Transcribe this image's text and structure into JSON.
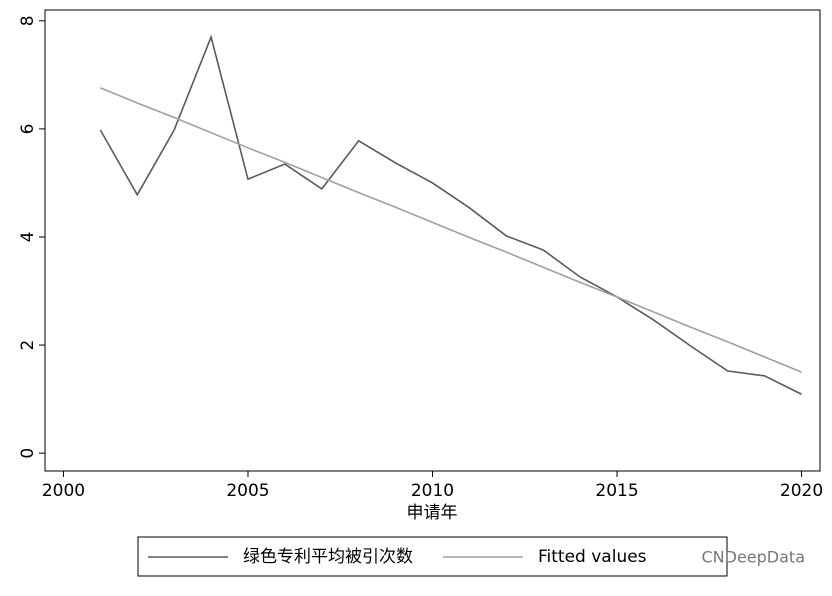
{
  "chart_data": {
    "type": "line",
    "x": [
      2001,
      2002,
      2003,
      2004,
      2005,
      2006,
      2007,
      2008,
      2009,
      2010,
      2011,
      2012,
      2013,
      2014,
      2015,
      2016,
      2017,
      2018,
      2019,
      2020
    ],
    "series": [
      {
        "name": "绿色专利平均被引次数",
        "color": "#5a5a5a",
        "values": [
          5.98,
          4.78,
          5.98,
          7.7,
          5.07,
          5.35,
          4.89,
          5.78,
          5.37,
          5.0,
          4.54,
          4.02,
          3.76,
          3.26,
          2.89,
          2.46,
          1.98,
          1.52,
          1.43,
          1.09
        ]
      },
      {
        "name": "Fitted values",
        "color": "#a0a0a0",
        "values": [
          6.76,
          6.48,
          6.21,
          5.93,
          5.65,
          5.38,
          5.1,
          4.82,
          4.55,
          4.27,
          3.99,
          3.72,
          3.44,
          3.16,
          2.89,
          2.61,
          2.33,
          2.06,
          1.78,
          1.5
        ]
      }
    ],
    "x_label": "申请年",
    "xlim": [
      1999.5,
      2020.5
    ],
    "xticks": [
      2000,
      2005,
      2010,
      2015,
      2020
    ],
    "ylim": [
      -0.33,
      8.2
    ],
    "yticks": [
      0,
      2,
      4,
      6,
      8
    ],
    "legend": "bottom",
    "watermark": "CNDeepData"
  }
}
